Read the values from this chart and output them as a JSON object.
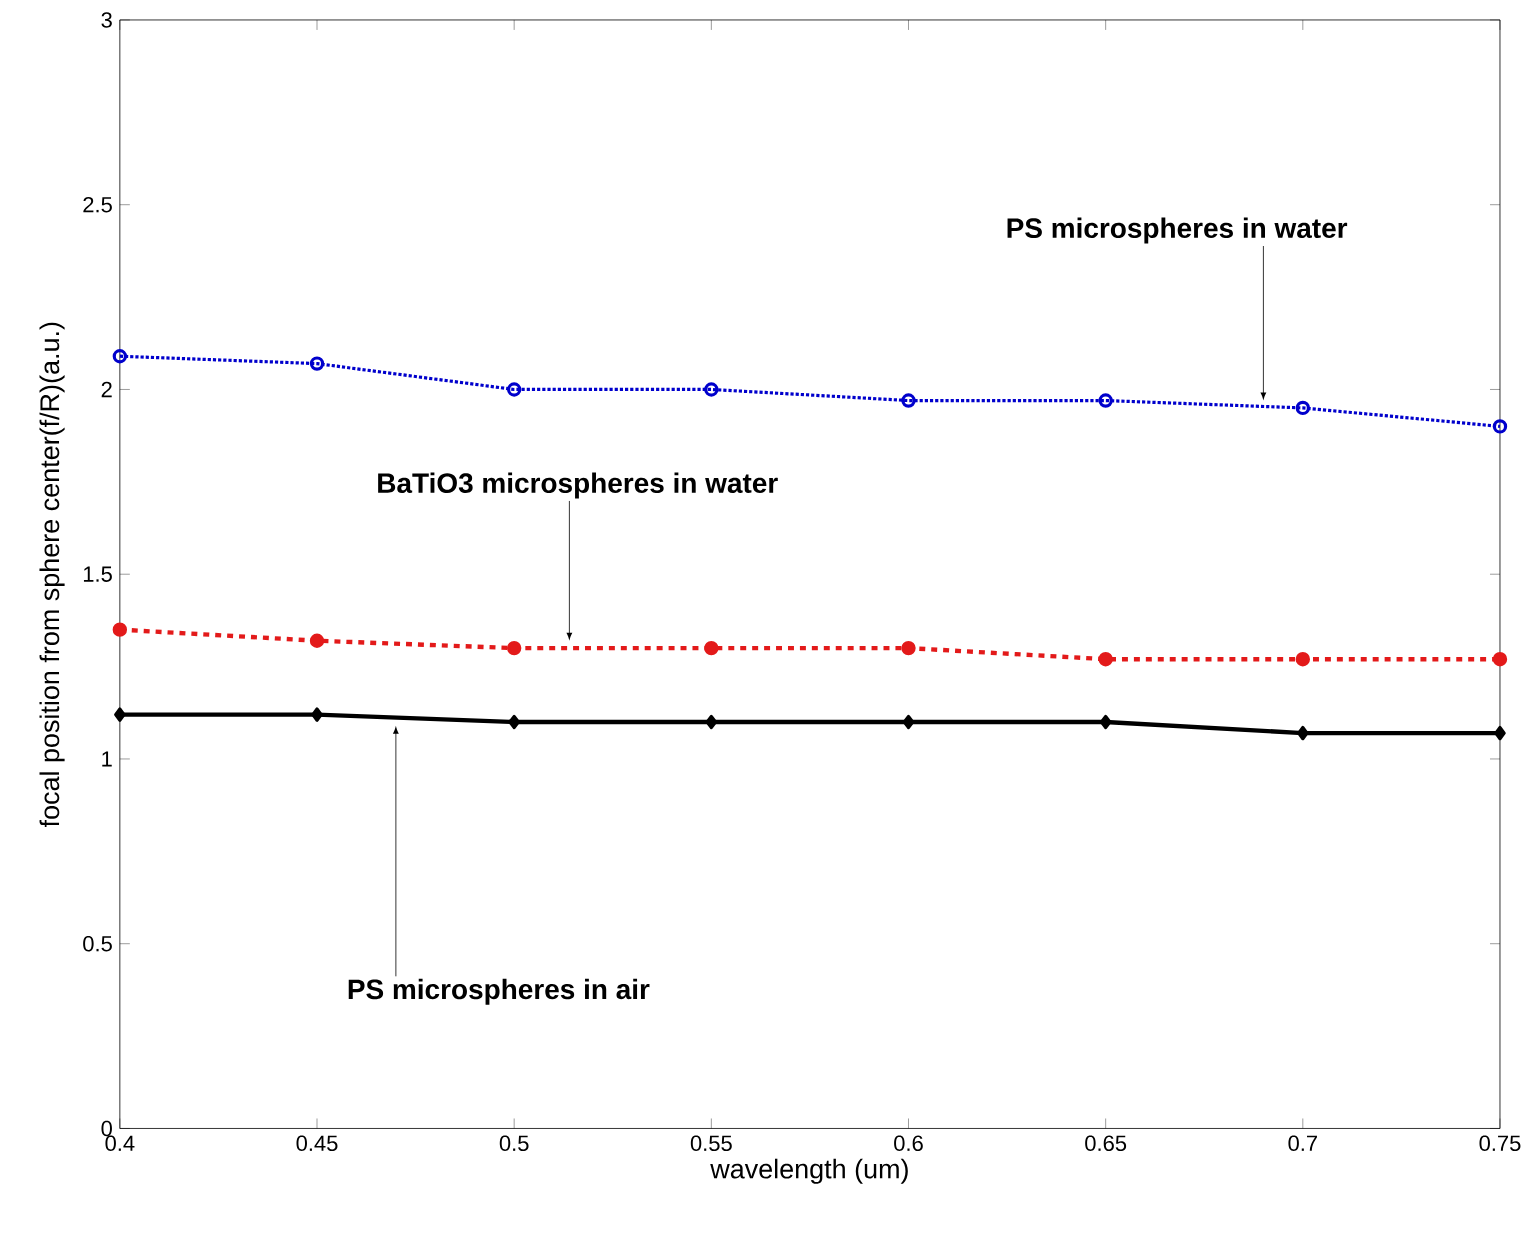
{
  "chart_data": {
    "type": "line",
    "xlabel": "wavelength (um)",
    "ylabel": "focal position from sphere center(f/R)(a.u.)",
    "x": [
      0.4,
      0.45,
      0.5,
      0.55,
      0.6,
      0.65,
      0.7,
      0.75
    ],
    "series": [
      {
        "color": "#0000cc",
        "marker": "circle",
        "line_style": "dotted",
        "values": [
          2.09,
          2.07,
          2.0,
          2.0,
          1.97,
          1.97,
          1.95,
          1.9
        ]
      },
      {
        "color": "#e31a1a",
        "marker": "circle",
        "line_style": "dashed",
        "values": [
          1.35,
          1.32,
          1.3,
          1.3,
          1.3,
          1.27,
          1.27,
          1.27
        ]
      },
      {
        "color": "#000000",
        "marker": "diamond",
        "line_style": "solid",
        "values": [
          1.12,
          1.12,
          1.1,
          1.1,
          1.1,
          1.1,
          1.07,
          1.07
        ]
      }
    ],
    "annotations": [
      {
        "text": "PS microspheres in water",
        "x": 0.69,
        "y": 1.95
      },
      {
        "text": "BaTiO3 microspheres in water",
        "x": 0.514,
        "y": 1.3
      },
      {
        "text": "PS microspheres in air",
        "x": 0.47,
        "y": 1.11
      }
    ],
    "xlim": [
      0.4,
      0.75
    ],
    "ylim": [
      0,
      3
    ],
    "xticks": [
      0.4,
      0.45,
      0.5,
      0.55,
      0.6,
      0.65,
      0.7,
      0.75
    ],
    "yticks": [
      0,
      0.5,
      1,
      1.5,
      2,
      2.5,
      3
    ]
  }
}
